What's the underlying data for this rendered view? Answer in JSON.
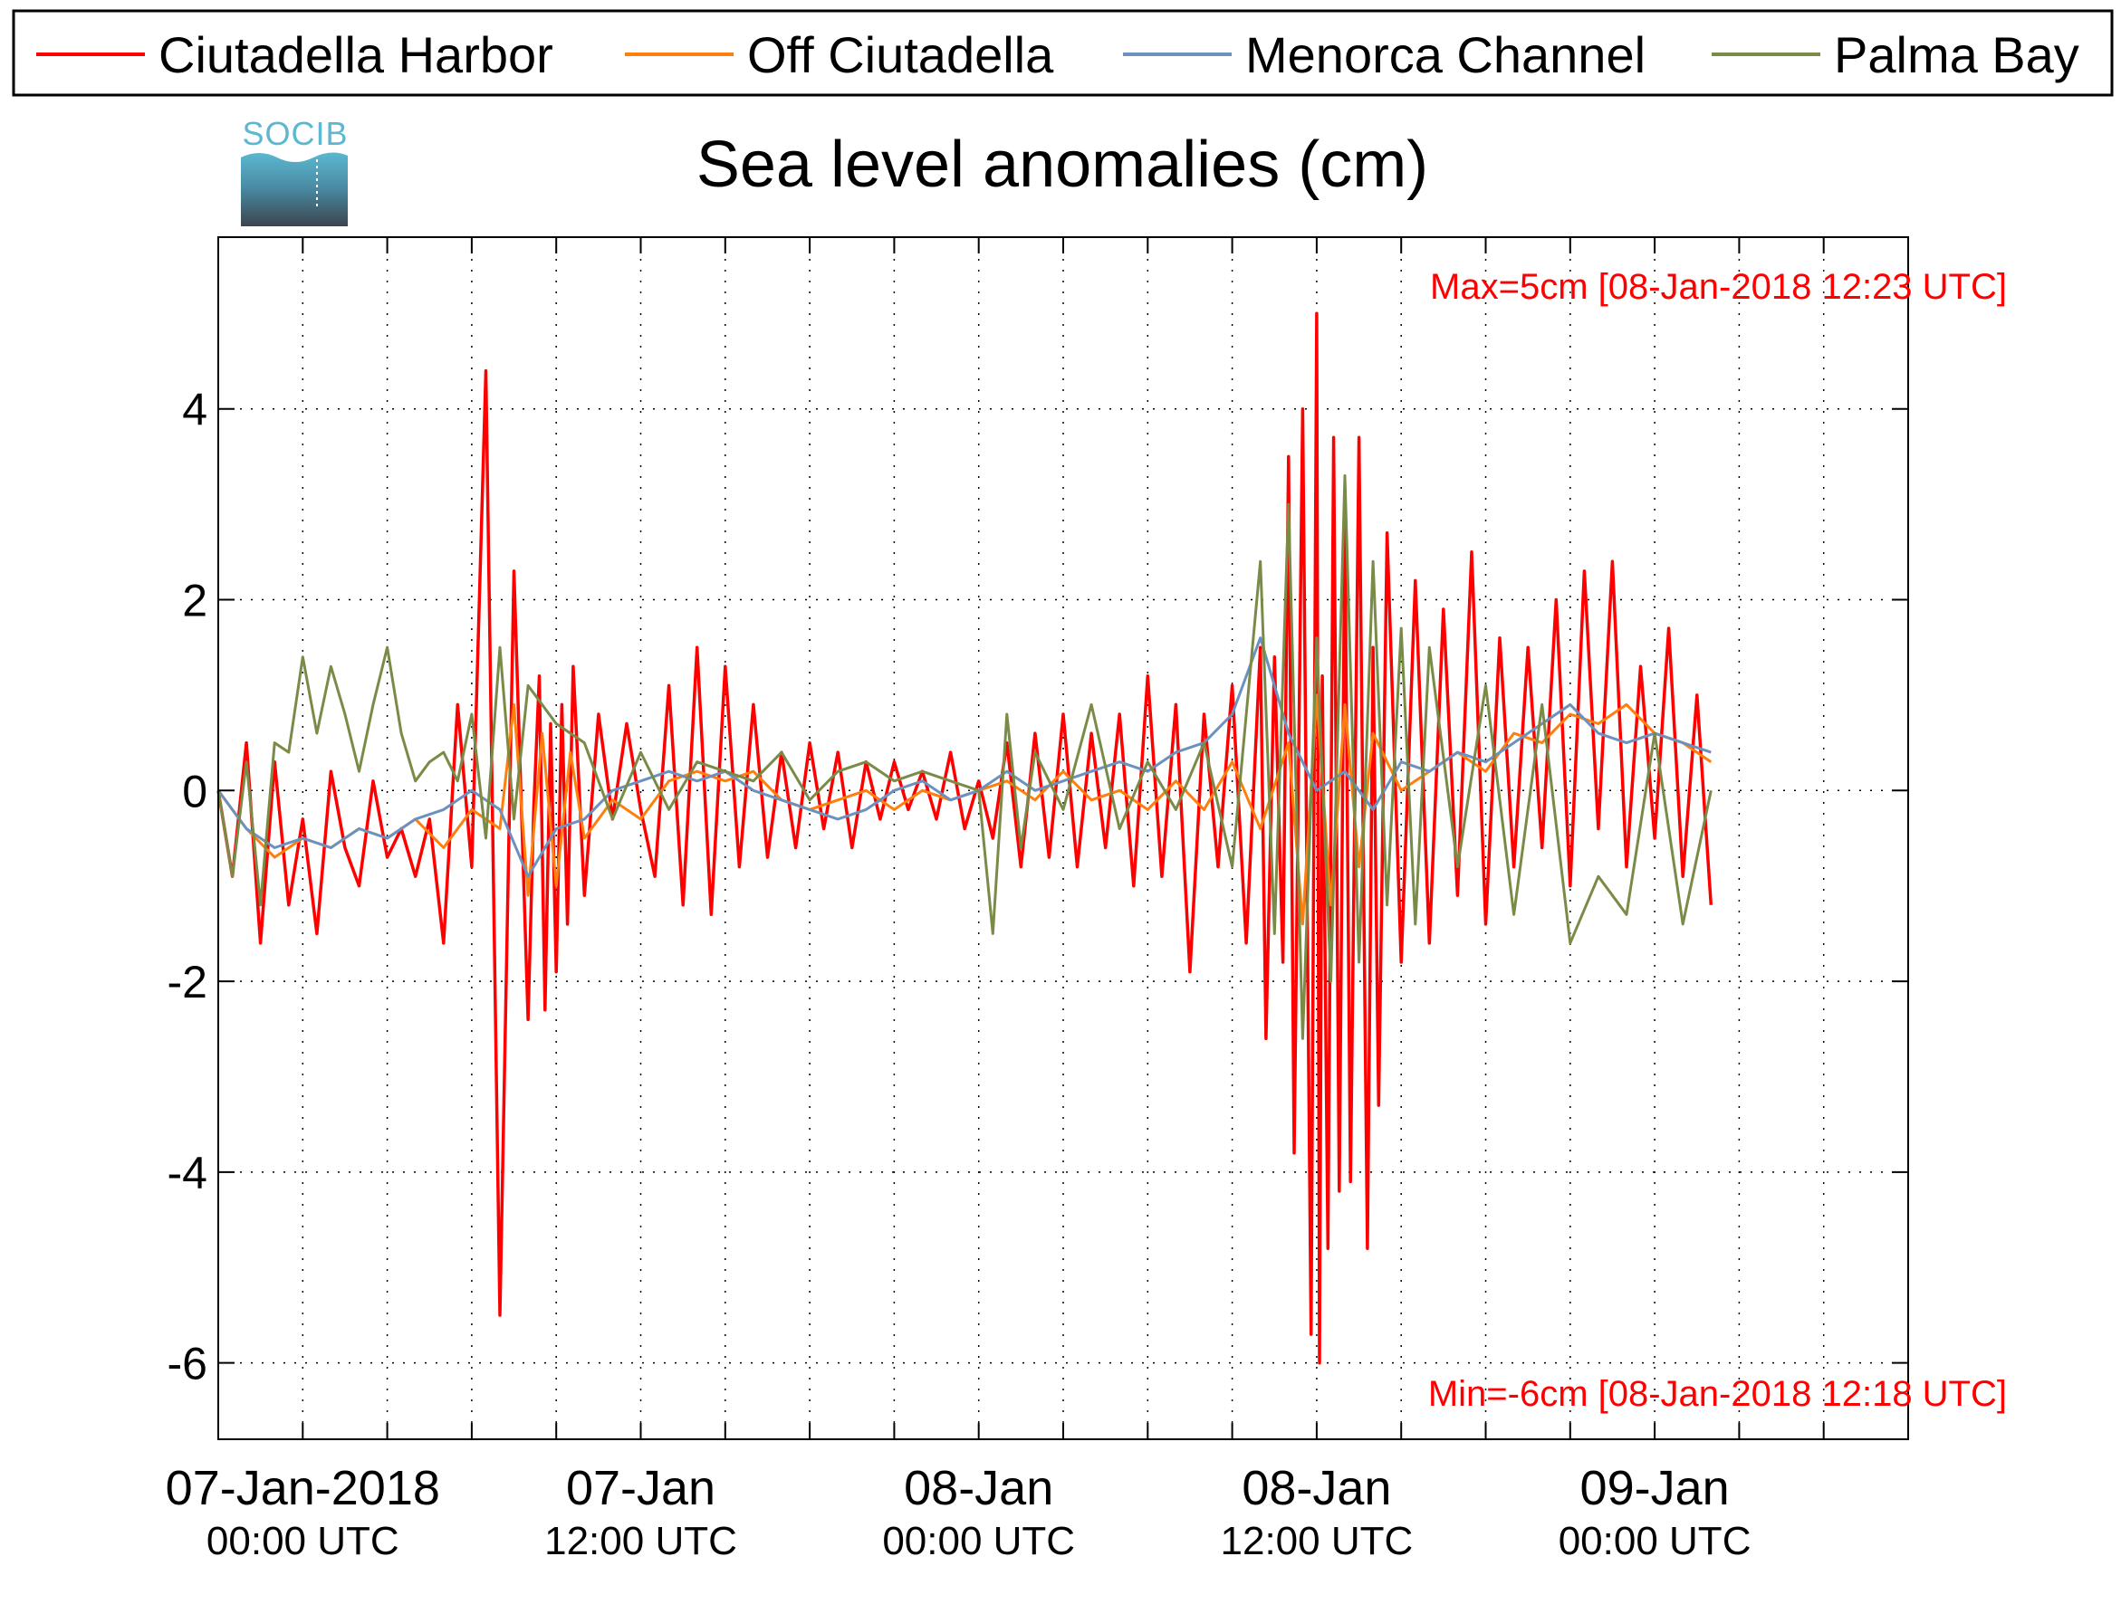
{
  "chart_data": {
    "type": "line",
    "title": "Sea level anomalies (cm)",
    "logo_text": "SOCIB",
    "xlabel": "",
    "ylabel": "",
    "x_unit": "hours since 07-Jan-2018 00:00 UTC",
    "xlim": [
      -3,
      57
    ],
    "ylim": [
      -6.8,
      5.8
    ],
    "y_ticks": [
      -6,
      -4,
      -2,
      0,
      2,
      4
    ],
    "x_major_ticks": [
      {
        "x": 0,
        "line1": "07-Jan-2018",
        "line2": "00:00 UTC"
      },
      {
        "x": 12,
        "line1": "07-Jan",
        "line2": "12:00 UTC"
      },
      {
        "x": 24,
        "line1": "08-Jan",
        "line2": "00:00 UTC"
      },
      {
        "x": 36,
        "line1": "08-Jan",
        "line2": "12:00 UTC"
      },
      {
        "x": 48,
        "line1": "09-Jan",
        "line2": "00:00 UTC"
      }
    ],
    "x_minor_tick_step_hours": 3,
    "grid": true,
    "legend_position": "top, above plot",
    "annotations": {
      "max_text": "Max=5cm [08-Jan-2018 12:23 UTC]",
      "min_text": "Min=-6cm [08-Jan-2018 12:18 UTC]",
      "color": "#ff0000"
    },
    "series": [
      {
        "name": "Ciutadella Harbor",
        "color": "#ff0000",
        "x": [
          -3,
          -2.5,
          -2,
          -1.5,
          -1,
          -0.5,
          0,
          0.5,
          1,
          1.5,
          2,
          2.5,
          3,
          3.5,
          4,
          4.5,
          5,
          5.5,
          6,
          6.5,
          7,
          7.5,
          8,
          8.2,
          8.4,
          8.6,
          8.8,
          9,
          9.2,
          9.4,
          9.6,
          10,
          10.5,
          11,
          11.5,
          12,
          12.5,
          13,
          13.5,
          14,
          14.5,
          15,
          15.5,
          16,
          16.5,
          17,
          17.5,
          18,
          18.5,
          19,
          19.5,
          20,
          20.5,
          21,
          21.5,
          22,
          22.5,
          23,
          23.5,
          24,
          24.5,
          25,
          25.5,
          26,
          26.5,
          27,
          27.5,
          28,
          28.5,
          29,
          29.5,
          30,
          30.5,
          31,
          31.5,
          32,
          32.5,
          33,
          33.5,
          34,
          34.2,
          34.5,
          34.8,
          35,
          35.2,
          35.5,
          35.8,
          36,
          36.1,
          36.2,
          36.4,
          36.6,
          36.8,
          37,
          37.2,
          37.5,
          37.8,
          38,
          38.2,
          38.5,
          39,
          39.5,
          40,
          40.5,
          41,
          41.5,
          42,
          42.5,
          43,
          43.5,
          44,
          44.5,
          45,
          45.5,
          46,
          46.5,
          47,
          47.5,
          48,
          48.5,
          49,
          49.5,
          50
        ],
        "y": [
          0,
          -0.9,
          0.5,
          -1.6,
          0.3,
          -1.2,
          -0.3,
          -1.5,
          0.2,
          -0.6,
          -1,
          0.1,
          -0.7,
          -0.4,
          -0.9,
          -0.3,
          -1.6,
          0.9,
          -0.8,
          4.4,
          -5.5,
          2.3,
          -2.4,
          -0.2,
          1.2,
          -2.3,
          0.7,
          -1.9,
          0.9,
          -1.4,
          1.3,
          -1.1,
          0.8,
          -0.3,
          0.7,
          -0.2,
          -0.9,
          1.1,
          -1.2,
          1.5,
          -1.3,
          1.3,
          -0.8,
          0.9,
          -0.7,
          0.4,
          -0.6,
          0.5,
          -0.4,
          0.4,
          -0.6,
          0.3,
          -0.3,
          0.3,
          -0.2,
          0.2,
          -0.3,
          0.4,
          -0.4,
          0.1,
          -0.5,
          0.5,
          -0.8,
          0.6,
          -0.7,
          0.8,
          -0.8,
          0.6,
          -0.6,
          0.8,
          -1,
          1.2,
          -0.9,
          0.9,
          -1.9,
          0.8,
          -0.8,
          1.1,
          -1.6,
          1.5,
          -2.6,
          1.4,
          -1.8,
          3.5,
          -3.8,
          4,
          -5.7,
          5,
          -6,
          1.2,
          -4.8,
          3.7,
          -4.2,
          2.8,
          -4.1,
          3.7,
          -4.8,
          1.5,
          -3.3,
          2.7,
          -1.8,
          2.2,
          -1.6,
          1.9,
          -1.1,
          2.5,
          -1.4,
          1.6,
          -0.8,
          1.5,
          -0.6,
          2,
          -1,
          2.3,
          -0.4,
          2.4,
          -0.8,
          1.3,
          -0.5,
          1.7,
          -0.9,
          1,
          -1.2
        ]
      },
      {
        "name": "Off Ciutadella",
        "color": "#ff7f0e",
        "x": [
          -3,
          -2,
          -1,
          0,
          1,
          2,
          3,
          4,
          5,
          6,
          7,
          7.5,
          8,
          8.5,
          9,
          9.5,
          10,
          11,
          12,
          13,
          14,
          15,
          16,
          17,
          18,
          19,
          20,
          21,
          22,
          23,
          24,
          25,
          26,
          27,
          28,
          29,
          30,
          31,
          32,
          33,
          34,
          35,
          35.5,
          36,
          36.5,
          37,
          37.5,
          38,
          39,
          40,
          41,
          42,
          43,
          44,
          45,
          46,
          47,
          48,
          49,
          50
        ],
        "y": [
          0,
          -0.4,
          -0.7,
          -0.5,
          -0.6,
          -0.4,
          -0.5,
          -0.3,
          -0.6,
          -0.2,
          -0.4,
          0.9,
          -1.1,
          0.6,
          -1,
          0.4,
          -0.5,
          -0.1,
          -0.3,
          0.1,
          0.2,
          0.1,
          0.2,
          -0.1,
          -0.2,
          -0.1,
          0,
          -0.2,
          0,
          -0.1,
          0,
          0.1,
          -0.1,
          0.2,
          -0.1,
          0,
          -0.2,
          0.1,
          -0.2,
          0.3,
          -0.4,
          0.5,
          -1.4,
          1,
          -1.2,
          0.9,
          -0.8,
          0.6,
          0,
          0.2,
          0.4,
          0.2,
          0.6,
          0.5,
          0.8,
          0.7,
          0.9,
          0.6,
          0.5,
          0.3
        ]
      },
      {
        "name": "Menorca Channel",
        "color": "#6c91bf",
        "x": [
          -3,
          -2,
          -1,
          0,
          1,
          2,
          3,
          4,
          5,
          6,
          7,
          8,
          9,
          10,
          11,
          12,
          13,
          14,
          15,
          16,
          17,
          18,
          19,
          20,
          21,
          22,
          23,
          24,
          25,
          26,
          27,
          28,
          29,
          30,
          31,
          32,
          33,
          34,
          35,
          36,
          37,
          38,
          39,
          40,
          41,
          42,
          43,
          44,
          45,
          46,
          47,
          48,
          49,
          50
        ],
        "y": [
          0,
          -0.4,
          -0.6,
          -0.5,
          -0.6,
          -0.4,
          -0.5,
          -0.3,
          -0.2,
          0,
          -0.2,
          -0.9,
          -0.4,
          -0.3,
          0,
          0.1,
          0.2,
          0.1,
          0.2,
          0,
          -0.1,
          -0.2,
          -0.3,
          -0.2,
          0,
          0.1,
          -0.1,
          0,
          0.2,
          0,
          0.1,
          0.2,
          0.3,
          0.2,
          0.4,
          0.5,
          0.8,
          1.6,
          0.6,
          0,
          0.2,
          -0.2,
          0.3,
          0.2,
          0.4,
          0.3,
          0.5,
          0.7,
          0.9,
          0.6,
          0.5,
          0.6,
          0.5,
          0.4
        ]
      },
      {
        "name": "Palma Bay",
        "color": "#7a8b48",
        "x": [
          -3,
          -2.5,
          -2,
          -1.5,
          -1,
          -0.5,
          0,
          0.5,
          1,
          1.5,
          2,
          2.5,
          3,
          3.5,
          4,
          4.5,
          5,
          5.5,
          6,
          6.5,
          7,
          7.5,
          8,
          9,
          10,
          11,
          12,
          13,
          14,
          15,
          16,
          17,
          18,
          19,
          20,
          21,
          22,
          23,
          24,
          24.5,
          25,
          25.5,
          26,
          27,
          28,
          29,
          30,
          31,
          32,
          33,
          34,
          34.5,
          35,
          35.5,
          36,
          36.5,
          37,
          37.5,
          38,
          38.5,
          39,
          39.5,
          40,
          41,
          42,
          43,
          44,
          45,
          46,
          47,
          48,
          49,
          50
        ],
        "y": [
          0,
          -0.9,
          0.3,
          -1.2,
          0.5,
          0.4,
          1.4,
          0.6,
          1.3,
          0.8,
          0.2,
          0.9,
          1.5,
          0.6,
          0.1,
          0.3,
          0.4,
          0.1,
          0.8,
          -0.5,
          1.5,
          -0.3,
          1.1,
          0.7,
          0.5,
          -0.3,
          0.4,
          -0.2,
          0.3,
          0.2,
          0.1,
          0.4,
          -0.1,
          0.2,
          0.3,
          0.1,
          0.2,
          0.1,
          0,
          -1.5,
          0.8,
          -0.6,
          0.4,
          -0.2,
          0.9,
          -0.4,
          0.3,
          -0.2,
          0.5,
          -0.8,
          2.4,
          -1.5,
          3,
          -2.6,
          1.6,
          -2,
          3.3,
          -1.8,
          2.4,
          -1.2,
          1.7,
          -1.4,
          1.5,
          -0.8,
          1.1,
          -1.3,
          0.9,
          -1.6,
          -0.9,
          -1.3,
          0.6,
          -1.4,
          0
        ]
      }
    ]
  }
}
